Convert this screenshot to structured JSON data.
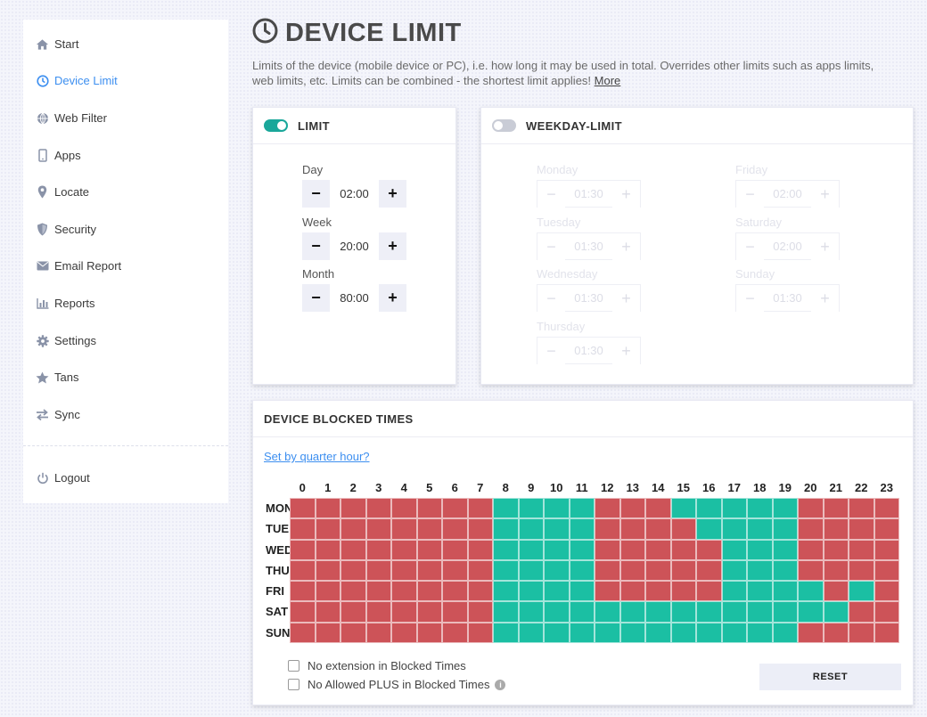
{
  "sidebar": {
    "items": [
      {
        "label": "Start",
        "icon": "home-icon"
      },
      {
        "label": "Device Limit",
        "icon": "clock-icon",
        "active": true
      },
      {
        "label": "Web Filter",
        "icon": "globe-icon"
      },
      {
        "label": "Apps",
        "icon": "mobile-icon"
      },
      {
        "label": "Locate",
        "icon": "map-pin-icon"
      },
      {
        "label": "Security",
        "icon": "shield-icon"
      },
      {
        "label": "Email Report",
        "icon": "envelope-icon"
      },
      {
        "label": "Reports",
        "icon": "bar-chart-icon"
      },
      {
        "label": "Settings",
        "icon": "gear-icon"
      },
      {
        "label": "Tans",
        "icon": "star-icon"
      },
      {
        "label": "Sync",
        "icon": "sync-arrows-icon"
      }
    ],
    "logout": "Logout"
  },
  "page": {
    "title": "DEVICE LIMIT",
    "description": "Limits of the device (mobile device or PC), i.e. how long it may be used in total. Overrides other limits such as apps limits, web limits, etc. Limits can be combined - the shortest limit applies!",
    "more_link": "More"
  },
  "limit": {
    "title": "LIMIT",
    "enabled": true,
    "day_label": "Day",
    "day_value": "02:00",
    "week_label": "Week",
    "week_value": "20:00",
    "month_label": "Month",
    "month_value": "80:00"
  },
  "weekday_limit": {
    "title": "WEEKDAY-LIMIT",
    "enabled": false,
    "monday_label": "Monday",
    "monday_value": "01:30",
    "tuesday_label": "Tuesday",
    "tuesday_value": "01:30",
    "wednesday_label": "Wednesday",
    "wednesday_value": "01:30",
    "thursday_label": "Thursday",
    "thursday_value": "01:30",
    "friday_label": "Friday",
    "friday_value": "02:00",
    "saturday_label": "Saturday",
    "saturday_value": "02:00",
    "sunday_label": "Sunday",
    "sunday_value": "01:30"
  },
  "blocked": {
    "title": "DEVICE BLOCKED TIMES",
    "quarter_link": "Set by quarter hour?",
    "hours": [
      "0",
      "1",
      "2",
      "3",
      "4",
      "5",
      "6",
      "7",
      "8",
      "9",
      "10",
      "11",
      "12",
      "13",
      "14",
      "15",
      "16",
      "17",
      "18",
      "19",
      "20",
      "21",
      "22",
      "23"
    ],
    "days": [
      "MON",
      "TUE",
      "WED",
      "THU",
      "FRI",
      "SAT",
      "SUN"
    ],
    "colors": {
      "blocked": "#cd5358",
      "allowed": "#1bbfa3"
    },
    "schedule": [
      "BBBBBBBBAAAABBBAAAAABBBB",
      "BBBBBBBBAAAABBBBAAAABBBB",
      "BBBBBBBBAAAABBBBBAAABBBB",
      "BBBBBBBBAAAABBBBBAAABBBB",
      "BBBBBBBBAAAABBBBBAAAABAB",
      "BBBBBBBBAAAAAAAAAAAAAABB",
      "BBBBBBBBAAAAAAAAAAAABBBB"
    ],
    "no_extension": "No extension in Blocked Times",
    "no_allowed_plus": "No Allowed PLUS in Blocked Times",
    "reset": "RESET"
  }
}
